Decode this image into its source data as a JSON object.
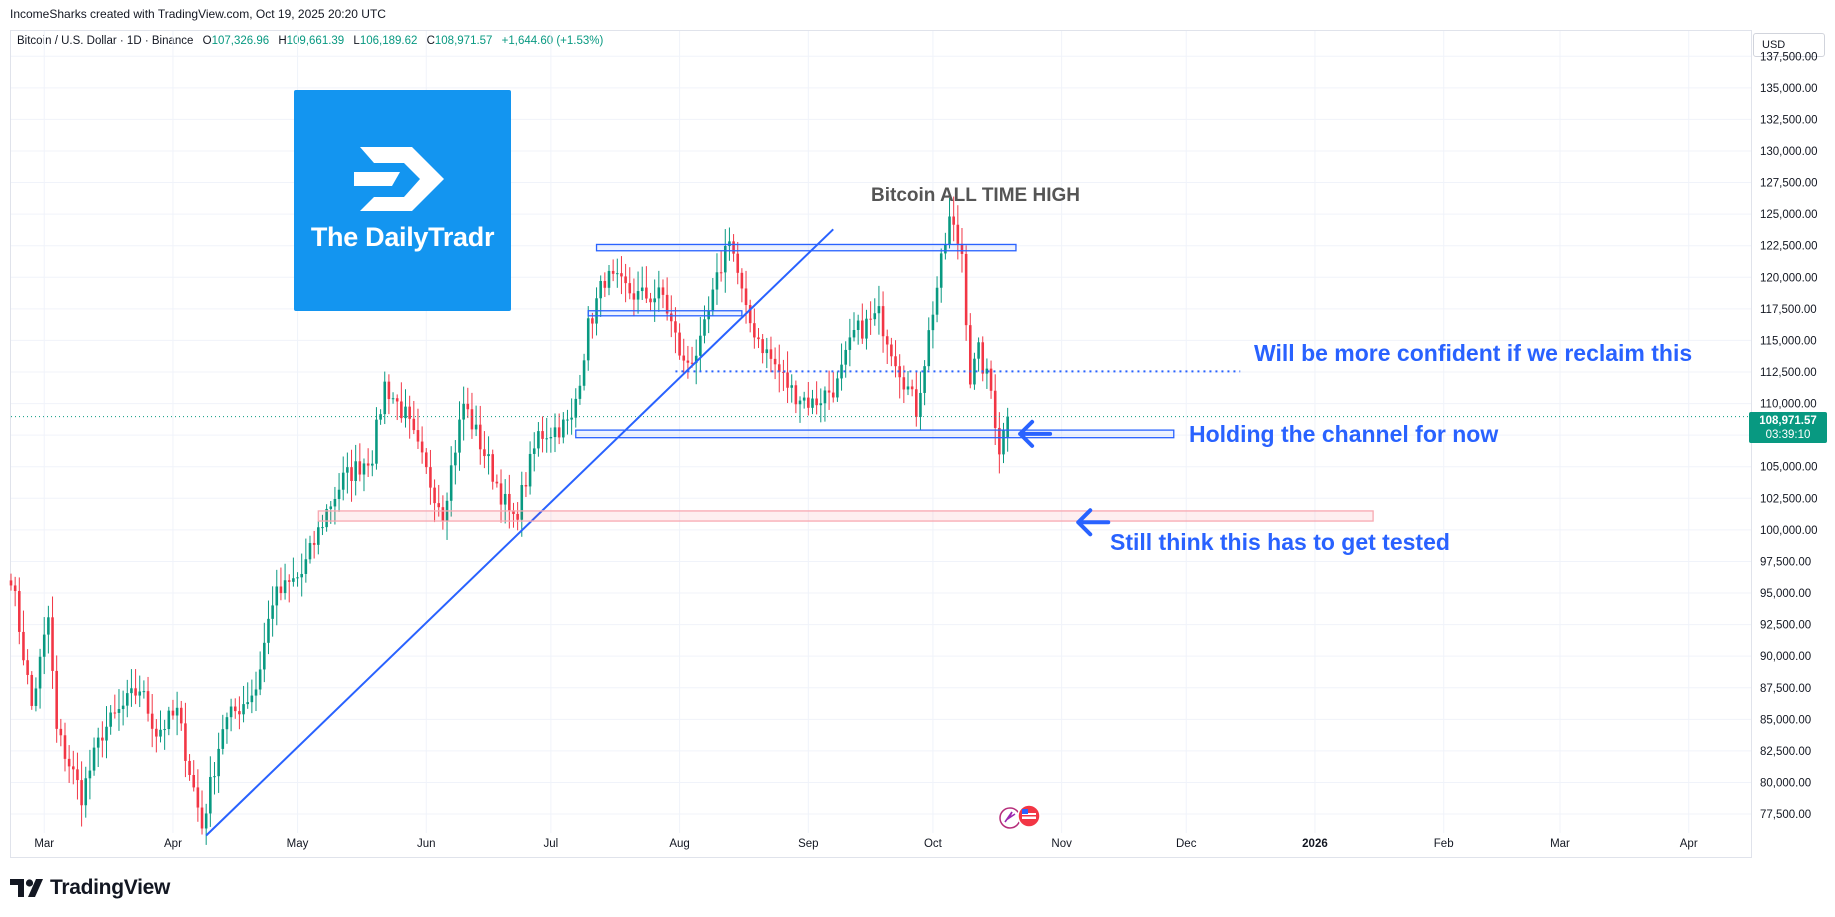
{
  "header": {
    "credit": "IncomeSharks created with TradingView.com, Oct 19, 2025 20:20 UTC",
    "symbol": "Bitcoin / U.S. Dollar · 1D · Binance",
    "open_label": "O",
    "open": "107,326.96",
    "high_label": "H",
    "high": "109,661.39",
    "low_label": "L",
    "low": "106,189.62",
    "close_label": "C",
    "close": "108,971.57",
    "change": "+1,644.60 (+1.53%)"
  },
  "currency": "USD",
  "logo": {
    "text": "The DailyTradr"
  },
  "price_tag": {
    "price": "108,971.57",
    "countdown": "03:39:10"
  },
  "annotations": {
    "ath": "Bitcoin ALL TIME HIGH",
    "reclaim": "Will be more confident if we reclaim this",
    "channel": "Holding the channel for now",
    "tested": "Still think this has to get tested"
  },
  "footer": {
    "brand": "TradingView"
  },
  "colors": {
    "up": "#089981",
    "down": "#f23645",
    "accent": "#2962ff",
    "support": "#f7a8b1"
  },
  "chart_data": {
    "type": "candlestick",
    "title": "Bitcoin / U.S. Dollar · 1D · Binance",
    "ylim": [
      76000,
      139500
    ],
    "yticks": [
      77500,
      80000,
      82500,
      85000,
      87500,
      90000,
      92500,
      95000,
      97500,
      100000,
      102500,
      105000,
      107500,
      110000,
      112500,
      115000,
      117500,
      120000,
      122500,
      125000,
      127500,
      130000,
      132500,
      135000,
      137500
    ],
    "ytick_labels": [
      "77,500.00",
      "80,000.00",
      "82,500.00",
      "85,000.00",
      "87,500.00",
      "90,000.00",
      "92,500.00",
      "95,000.00",
      "97,500.00",
      "100,000.00",
      "102,500.00",
      "105,000.00",
      "107,500.00",
      "110,000.00",
      "112,500.00",
      "115,000.00",
      "117,500.00",
      "120,000.00",
      "122,500.00",
      "125,000.00",
      "127,500.00",
      "130,000.00",
      "132,500.00",
      "135,000.00",
      "137,500.00"
    ],
    "xlim": [
      "2025-02-21",
      "2026-04-16"
    ],
    "xticks": [
      {
        "date": "2025-03-01",
        "label": "Mar"
      },
      {
        "date": "2025-04-01",
        "label": "Apr"
      },
      {
        "date": "2025-05-01",
        "label": "May"
      },
      {
        "date": "2025-06-01",
        "label": "Jun"
      },
      {
        "date": "2025-07-01",
        "label": "Jul"
      },
      {
        "date": "2025-08-01",
        "label": "Aug"
      },
      {
        "date": "2025-09-01",
        "label": "Sep"
      },
      {
        "date": "2025-10-01",
        "label": "Oct"
      },
      {
        "date": "2025-11-01",
        "label": "Nov"
      },
      {
        "date": "2025-12-01",
        "label": "Dec"
      },
      {
        "date": "2026-01-01",
        "label": "2026"
      },
      {
        "date": "2026-02-01",
        "label": "Feb"
      },
      {
        "date": "2026-03-01",
        "label": "Mar"
      },
      {
        "date": "2026-04-01",
        "label": "Apr"
      }
    ],
    "grid": true,
    "last_price": 108971.57,
    "series_knots": [
      [
        "2025-02-21",
        96500
      ],
      [
        "2025-02-26",
        86000
      ],
      [
        "2025-03-02",
        93000
      ],
      [
        "2025-03-04",
        84000
      ],
      [
        "2025-03-10",
        79000
      ],
      [
        "2025-03-15",
        84000
      ],
      [
        "2025-03-24",
        87500
      ],
      [
        "2025-03-28",
        84000
      ],
      [
        "2025-04-02",
        85500
      ],
      [
        "2025-04-08",
        76500
      ],
      [
        "2025-04-13",
        84500
      ],
      [
        "2025-04-21",
        87500
      ],
      [
        "2025-04-25",
        94500
      ],
      [
        "2025-05-02",
        96500
      ],
      [
        "2025-05-08",
        101500
      ],
      [
        "2025-05-12",
        104000
      ],
      [
        "2025-05-19",
        106000
      ],
      [
        "2025-05-22",
        111500
      ],
      [
        "2025-05-27",
        109000
      ],
      [
        "2025-06-01",
        104500
      ],
      [
        "2025-06-05",
        101500
      ],
      [
        "2025-06-10",
        110000
      ],
      [
        "2025-06-17",
        104500
      ],
      [
        "2025-06-22",
        100500
      ],
      [
        "2025-06-28",
        107500
      ],
      [
        "2025-07-06",
        108500
      ],
      [
        "2025-07-10",
        116000
      ],
      [
        "2025-07-14",
        120000
      ],
      [
        "2025-07-22",
        118500
      ],
      [
        "2025-07-28",
        118500
      ],
      [
        "2025-08-02",
        113000
      ],
      [
        "2025-08-06",
        114500
      ],
      [
        "2025-08-13",
        123500
      ],
      [
        "2025-08-17",
        117000
      ],
      [
        "2025-08-22",
        114000
      ],
      [
        "2025-08-28",
        111000
      ],
      [
        "2025-09-02",
        110000
      ],
      [
        "2025-09-08",
        111500
      ],
      [
        "2025-09-12",
        115500
      ],
      [
        "2025-09-18",
        117000
      ],
      [
        "2025-09-24",
        112000
      ],
      [
        "2025-09-27",
        109500
      ],
      [
        "2025-10-01",
        117500
      ],
      [
        "2025-10-05",
        124500
      ],
      [
        "2025-10-08",
        122000
      ],
      [
        "2025-10-10",
        112000
      ],
      [
        "2025-10-12",
        114000
      ],
      [
        "2025-10-15",
        111000
      ],
      [
        "2025-10-17",
        106500
      ],
      [
        "2025-10-19",
        108972
      ]
    ],
    "drawings": [
      {
        "kind": "trendline",
        "from": [
          "2025-04-09",
          75800
        ],
        "to": [
          "2025-09-07",
          123800
        ]
      },
      {
        "kind": "box",
        "label": "resistance",
        "from": [
          "2025-07-12",
          122600
        ],
        "to": [
          "2025-10-21",
          122100
        ]
      },
      {
        "kind": "box",
        "label": "range",
        "from": [
          "2025-07-10",
          117350
        ],
        "to": [
          "2025-08-16",
          116950
        ]
      },
      {
        "kind": "box",
        "label": "channel",
        "from": [
          "2025-07-07",
          107900
        ],
        "to": [
          "2025-11-28",
          107300
        ]
      },
      {
        "kind": "box",
        "label": "support",
        "from": [
          "2025-05-06",
          101500
        ],
        "to": [
          "2026-01-15",
          100700
        ]
      },
      {
        "kind": "dotted",
        "from": [
          "2025-07-31",
          112550
        ],
        "to": [
          "2025-12-14",
          112550
        ]
      },
      {
        "kind": "arrow",
        "at": [
          "2025-10-22",
          107600
        ]
      },
      {
        "kind": "arrow",
        "at": [
          "2025-11-05",
          100600
        ]
      }
    ]
  }
}
